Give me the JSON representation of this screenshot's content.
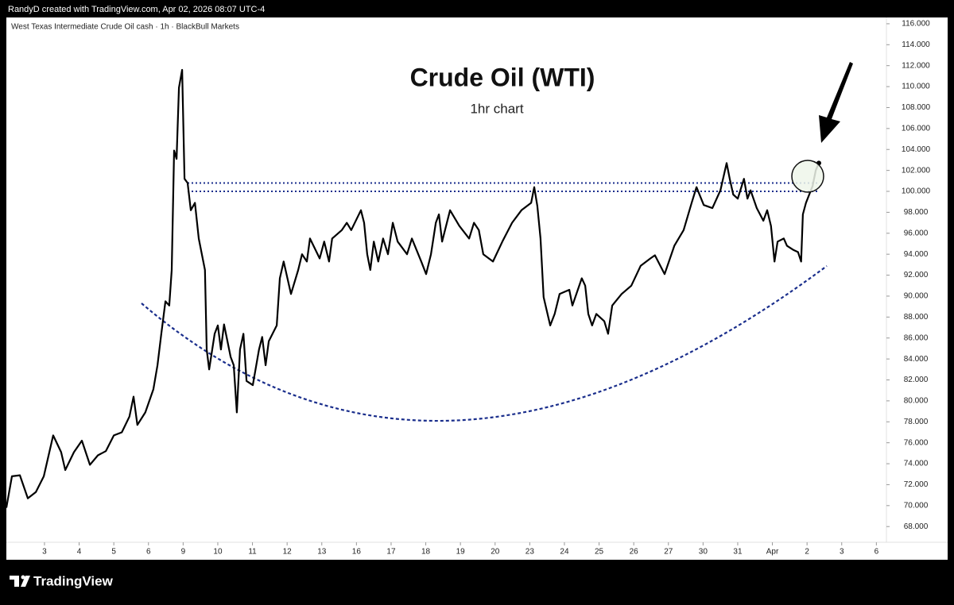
{
  "header": "RandyD created with TradingView.com, Apr 02, 2026 08:07 UTC-4",
  "footer": "TradingView",
  "chart_data": {
    "type": "line",
    "source": "West Texas Intermediate Crude Oil cash · 1h · BlackBull Markets",
    "title": "Crude Oil (WTI)",
    "subtitle": "1hr chart",
    "xlim": [
      -1.1,
      24.29
    ],
    "xticks": [
      {
        "value": 0,
        "label": "3"
      },
      {
        "value": 1,
        "label": "4"
      },
      {
        "value": 2,
        "label": "5"
      },
      {
        "value": 3,
        "label": "6"
      },
      {
        "value": 4,
        "label": "9"
      },
      {
        "value": 5,
        "label": "10"
      },
      {
        "value": 6,
        "label": "11"
      },
      {
        "value": 7,
        "label": "12"
      },
      {
        "value": 8,
        "label": "13"
      },
      {
        "value": 9,
        "label": "16"
      },
      {
        "value": 10,
        "label": "17"
      },
      {
        "value": 11,
        "label": "18"
      },
      {
        "value": 12,
        "label": "19"
      },
      {
        "value": 13,
        "label": "20"
      },
      {
        "value": 14,
        "label": "23"
      },
      {
        "value": 15,
        "label": "24"
      },
      {
        "value": 16,
        "label": "25"
      },
      {
        "value": 17,
        "label": "26"
      },
      {
        "value": 18,
        "label": "27"
      },
      {
        "value": 19,
        "label": "30"
      },
      {
        "value": 20,
        "label": "31"
      },
      {
        "value": 21,
        "label": "Apr"
      },
      {
        "value": 22,
        "label": "2"
      },
      {
        "value": 23,
        "label": "3"
      },
      {
        "value": 24,
        "label": "6"
      }
    ],
    "ylim": [
      66.5,
      116.6
    ],
    "yticks": [
      {
        "value": 68,
        "label": "68.000"
      },
      {
        "value": 70,
        "label": "70.000"
      },
      {
        "value": 72,
        "label": "72.000"
      },
      {
        "value": 74,
        "label": "74.000"
      },
      {
        "value": 76,
        "label": "76.000"
      },
      {
        "value": 78,
        "label": "78.000"
      },
      {
        "value": 80,
        "label": "80.000"
      },
      {
        "value": 82,
        "label": "82.000"
      },
      {
        "value": 84,
        "label": "84.000"
      },
      {
        "value": 86,
        "label": "86.000"
      },
      {
        "value": 88,
        "label": "88.000"
      },
      {
        "value": 90,
        "label": "90.000"
      },
      {
        "value": 92,
        "label": "92.000"
      },
      {
        "value": 94,
        "label": "94.000"
      },
      {
        "value": 96,
        "label": "96.000"
      },
      {
        "value": 98,
        "label": "98.000"
      },
      {
        "value": 100,
        "label": "100.000"
      },
      {
        "value": 102,
        "label": "102.000"
      },
      {
        "value": 104,
        "label": "104.000"
      },
      {
        "value": 106,
        "label": "106.000"
      },
      {
        "value": 108,
        "label": "108.000"
      },
      {
        "value": 110,
        "label": "110.000"
      },
      {
        "value": 112,
        "label": "112.000"
      },
      {
        "value": 114,
        "label": "114.000"
      },
      {
        "value": 116,
        "label": "116.000"
      }
    ],
    "levels": [
      100.8,
      100.0
    ],
    "levels_color": "#1a2e8c",
    "color": "#000000",
    "x": [
      -1.1,
      -0.94,
      -0.71,
      -0.48,
      -0.25,
      -0.02,
      0.25,
      0.48,
      0.6,
      0.85,
      1.08,
      1.31,
      1.54,
      1.77,
      2.0,
      2.23,
      2.45,
      2.57,
      2.68,
      2.91,
      3.14,
      3.26,
      3.37,
      3.49,
      3.6,
      3.67,
      3.74,
      3.81,
      3.88,
      3.97,
      4.04,
      4.13,
      4.22,
      4.34,
      4.45,
      4.63,
      4.68,
      4.75,
      4.91,
      5.0,
      5.09,
      5.18,
      5.37,
      5.46,
      5.55,
      5.64,
      5.74,
      5.83,
      6.01,
      6.19,
      6.28,
      6.38,
      6.47,
      6.7,
      6.79,
      6.9,
      7.11,
      7.32,
      7.43,
      7.57,
      7.66,
      7.94,
      8.07,
      8.21,
      8.3,
      8.58,
      8.72,
      8.85,
      9.13,
      9.22,
      9.31,
      9.4,
      9.5,
      9.63,
      9.77,
      9.91,
      10.05,
      10.19,
      10.46,
      10.6,
      10.87,
      11.01,
      11.15,
      11.29,
      11.38,
      11.47,
      11.7,
      11.97,
      12.25,
      12.39,
      12.53,
      12.66,
      12.94,
      13.21,
      13.49,
      13.76,
      14.04,
      14.13,
      14.22,
      14.31,
      14.4,
      14.59,
      14.72,
      14.86,
      15.14,
      15.23,
      15.5,
      15.6,
      15.69,
      15.8,
      15.92,
      16.15,
      16.26,
      16.38,
      16.65,
      16.93,
      17.2,
      17.48,
      17.61,
      17.89,
      18.17,
      18.44,
      18.67,
      18.81,
      19.02,
      19.27,
      19.5,
      19.68,
      19.77,
      19.87,
      20.0,
      20.18,
      20.28,
      20.37,
      20.55,
      20.74,
      20.85,
      20.96,
      21.06,
      21.15,
      21.33,
      21.42,
      21.61,
      21.74,
      21.83,
      21.88,
      21.97,
      22.16,
      22.25,
      22.34
    ],
    "values": [
      69.8,
      72.8,
      72.9,
      70.7,
      71.3,
      72.8,
      76.7,
      75.1,
      73.4,
      75.1,
      76.2,
      73.9,
      74.8,
      75.2,
      76.7,
      77.0,
      78.5,
      80.4,
      77.7,
      78.9,
      81.1,
      83.4,
      86.4,
      89.5,
      89.1,
      92.5,
      103.9,
      103.1,
      109.9,
      111.6,
      101.2,
      100.8,
      98.2,
      98.9,
      95.5,
      92.5,
      84.9,
      83.0,
      86.4,
      87.2,
      84.9,
      87.3,
      84.2,
      83.4,
      78.9,
      84.9,
      86.4,
      81.9,
      81.5,
      84.9,
      86.1,
      83.4,
      85.7,
      87.2,
      91.7,
      93.3,
      90.2,
      92.5,
      94.0,
      93.3,
      95.5,
      93.6,
      95.2,
      93.3,
      95.5,
      96.3,
      97.0,
      96.3,
      98.2,
      97.0,
      94.0,
      92.5,
      95.2,
      93.3,
      95.5,
      94.0,
      97.0,
      95.2,
      94.0,
      95.5,
      93.3,
      92.1,
      94.0,
      97.0,
      97.8,
      95.2,
      98.2,
      96.7,
      95.5,
      97.0,
      96.3,
      94.0,
      93.3,
      95.2,
      97.0,
      98.2,
      98.9,
      100.4,
      98.6,
      95.5,
      89.9,
      87.2,
      88.3,
      90.2,
      90.6,
      89.1,
      91.7,
      91.0,
      88.3,
      87.2,
      88.3,
      87.6,
      86.4,
      89.1,
      90.2,
      91.0,
      92.9,
      93.6,
      93.9,
      92.1,
      94.8,
      96.3,
      98.9,
      100.4,
      98.7,
      98.4,
      100.1,
      102.7,
      101.2,
      99.7,
      99.3,
      101.2,
      99.3,
      100.1,
      98.4,
      97.2,
      98.2,
      96.7,
      93.3,
      95.2,
      95.5,
      94.8,
      94.4,
      94.2,
      93.3,
      97.8,
      98.9,
      100.5,
      102.0,
      102.7
    ]
  }
}
